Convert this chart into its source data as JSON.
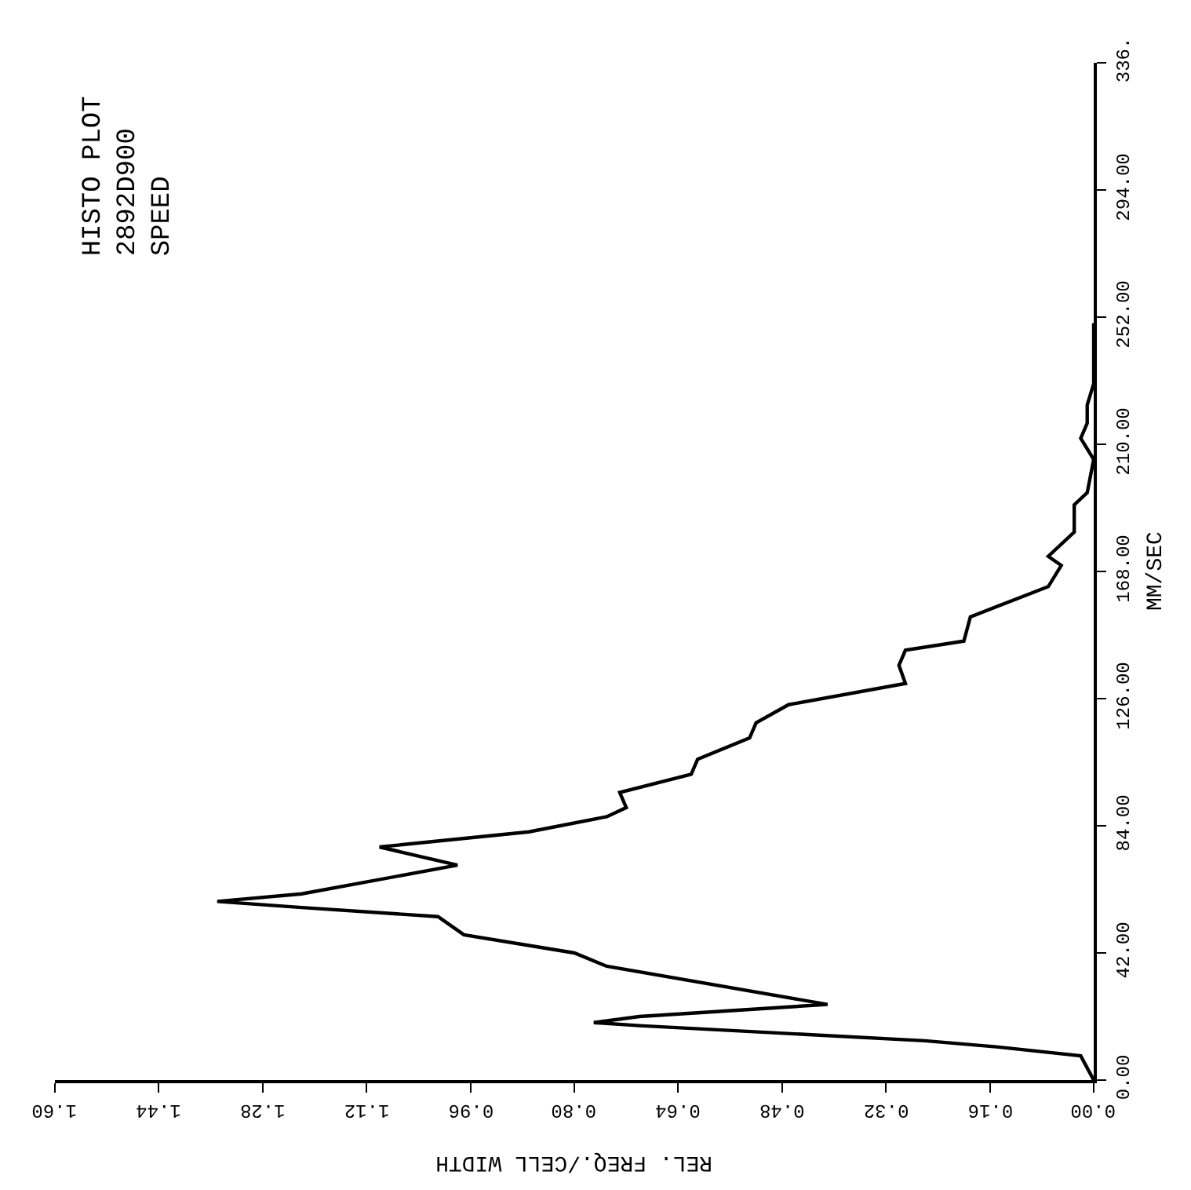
{
  "chart_data": {
    "type": "line",
    "orientation": "horizontal",
    "title": "HISTO PLOT\n2892D900\nSPEED",
    "xlabel": "REL. FREQ./CELL WIDTH",
    "ylabel": "MM/SEC",
    "x": [
      0,
      8,
      11,
      13,
      18,
      19,
      21,
      25,
      37.6,
      42,
      48,
      54,
      57,
      59,
      61.5,
      71,
      77,
      82,
      87,
      90,
      95,
      101,
      106,
      113,
      118,
      124,
      131,
      137,
      142,
      145,
      153,
      163,
      170,
      173,
      181,
      190,
      194,
      205,
      212,
      217,
      223,
      230,
      250
    ],
    "series": [
      {
        "color": "#000000",
        "values": [
          0,
          0.02,
          0.15,
          0.26,
          0.7,
          0.77,
          0.7,
          0.41,
          0.75,
          0.8,
          0.97,
          1.01,
          1.22,
          1.35,
          1.22,
          0.98,
          1.1,
          0.87,
          0.75,
          0.72,
          0.73,
          0.62,
          0.61,
          0.53,
          0.52,
          0.47,
          0.29,
          0.3,
          0.29,
          0.2,
          0.19,
          0.07,
          0.05,
          0.07,
          0.03,
          0.03,
          0.01,
          0,
          0.02,
          0.01,
          0.01,
          0,
          0
        ]
      }
    ],
    "xlim": [
      1.6,
      0
    ],
    "xticks": [
      {
        "value": 0,
        "label": "0.00"
      },
      {
        "value": 0.16,
        "label": "0.16"
      },
      {
        "value": 0.32,
        "label": "0.32"
      },
      {
        "value": 0.48,
        "label": "0.48"
      },
      {
        "value": 0.64,
        "label": "0.64"
      },
      {
        "value": 0.8,
        "label": "0.80"
      },
      {
        "value": 0.96,
        "label": "0.96"
      },
      {
        "value": 1.12,
        "label": "1.12"
      },
      {
        "value": 1.28,
        "label": "1.28"
      },
      {
        "value": 1.44,
        "label": "1.44"
      },
      {
        "value": 1.6,
        "label": "1.60"
      }
    ],
    "ylim": [
      0,
      336
    ],
    "yticks": [
      {
        "value": 0,
        "label": "0.00"
      },
      {
        "value": 42,
        "label": "42.00"
      },
      {
        "value": 84,
        "label": "84.00"
      },
      {
        "value": 126,
        "label": "126.00"
      },
      {
        "value": 168,
        "label": "168.00"
      },
      {
        "value": 210,
        "label": "210.00"
      },
      {
        "value": 252,
        "label": "252.00"
      },
      {
        "value": 294,
        "label": "294.00"
      },
      {
        "value": 336,
        "label": "336."
      }
    ],
    "marker": "none",
    "line_style": "solid"
  }
}
